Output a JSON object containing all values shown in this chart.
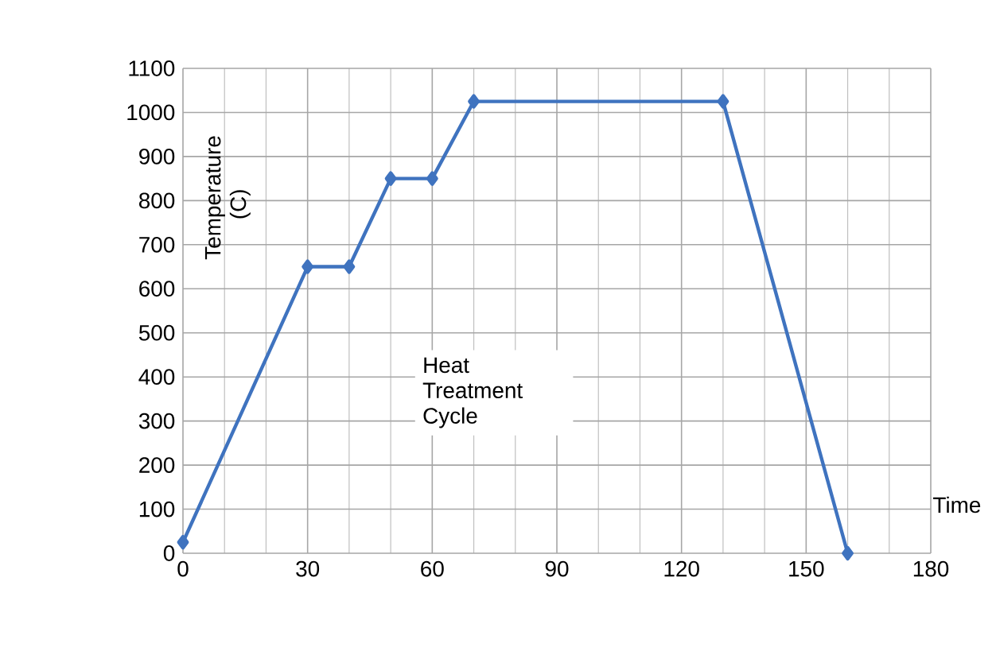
{
  "chart_data": {
    "type": "line",
    "title": "Heat Treatment Cycle",
    "xlabel": "Time",
    "ylabel": "Temperature (C)",
    "x": [
      0,
      30,
      40,
      50,
      60,
      70,
      130,
      160
    ],
    "series": [
      {
        "color": "#3f73bf",
        "values": [
          25,
          650,
          650,
          850,
          850,
          1025,
          1025,
          0
        ]
      }
    ],
    "xlim": [
      0,
      180
    ],
    "xticks": [
      0,
      30,
      60,
      90,
      120,
      150,
      180
    ],
    "ylim": [
      0,
      1100
    ],
    "yticks": [
      0,
      100,
      200,
      300,
      400,
      500,
      600,
      700,
      800,
      900,
      1000,
      1100
    ],
    "grid": true,
    "marker": "diamond",
    "line_style": "solid"
  }
}
